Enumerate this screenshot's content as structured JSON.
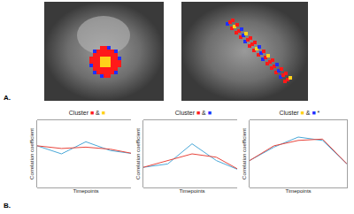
{
  "panels": {
    "a_label": "A.",
    "b_label": "B."
  },
  "chart_data": [
    {
      "type": "line",
      "title": [
        {
          "text": "Cluster "
        },
        {
          "text": "■",
          "color": "#ff2020"
        },
        {
          "text": " & "
        },
        {
          "text": "■",
          "color": "#ffd21a"
        }
      ],
      "x_label": "Timepoints",
      "y_label": "Correlation coefficient",
      "x": [
        1,
        2,
        3,
        4,
        5
      ],
      "xlim": [
        1,
        5
      ],
      "ylim": [
        0,
        1
      ],
      "tick_labels": false,
      "grid": false,
      "series": [
        {
          "color": "#4aa8d8",
          "values": [
            0.62,
            0.5,
            0.68,
            0.55,
            0.5
          ]
        },
        {
          "color": "#e8453c",
          "values": [
            0.62,
            0.58,
            0.6,
            0.57,
            0.5
          ]
        }
      ]
    },
    {
      "type": "line",
      "title": [
        {
          "text": "Cluster "
        },
        {
          "text": "■",
          "color": "#ff2020"
        },
        {
          "text": " & "
        },
        {
          "text": "■",
          "color": "#2030ff"
        }
      ],
      "x_label": "Timepoints",
      "y_label": "Correlation coefficient",
      "x": [
        1,
        2,
        3,
        4,
        5
      ],
      "xlim": [
        1,
        5
      ],
      "ylim": [
        0,
        1
      ],
      "tick_labels": false,
      "grid": false,
      "series": [
        {
          "color": "#4aa8d8",
          "values": [
            0.3,
            0.35,
            0.65,
            0.4,
            0.25
          ]
        },
        {
          "color": "#e8453c",
          "values": [
            0.3,
            0.4,
            0.5,
            0.45,
            0.25
          ]
        }
      ]
    },
    {
      "type": "line",
      "title": [
        {
          "text": "Cluster "
        },
        {
          "text": "■",
          "color": "#ffd21a"
        },
        {
          "text": " & "
        },
        {
          "text": "■",
          "color": "#2030ff"
        },
        {
          "text": " *"
        }
      ],
      "x_label": "Timepoints",
      "y_label": "Correlation coefficient",
      "x": [
        1,
        2,
        3,
        4,
        5
      ],
      "xlim": [
        1,
        5
      ],
      "ylim": [
        0,
        1
      ],
      "tick_labels": false,
      "grid": false,
      "series": [
        {
          "color": "#4aa8d8",
          "values": [
            0.4,
            0.6,
            0.75,
            0.7,
            0.35
          ]
        },
        {
          "color": "#e8453c",
          "values": [
            0.4,
            0.62,
            0.7,
            0.72,
            0.35
          ]
        }
      ]
    }
  ]
}
